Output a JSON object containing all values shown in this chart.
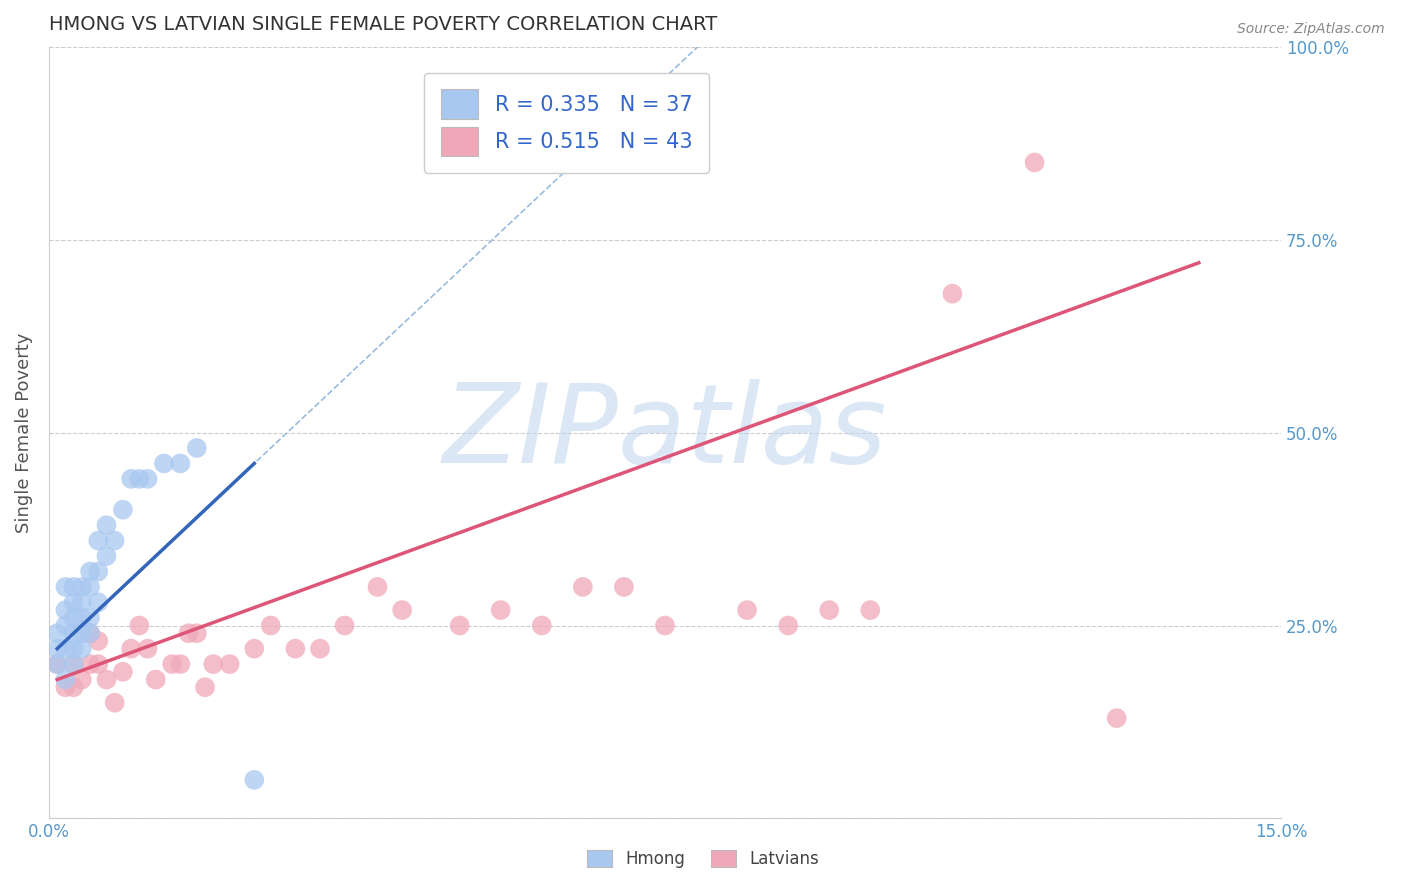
{
  "title": "HMONG VS LATVIAN SINGLE FEMALE POVERTY CORRELATION CHART",
  "source": "Source: ZipAtlas.com",
  "ylabel": "Single Female Poverty",
  "xlim": [
    0.0,
    0.15
  ],
  "ylim": [
    0.0,
    1.0
  ],
  "yticks": [
    0.0,
    0.25,
    0.5,
    0.75,
    1.0
  ],
  "yticklabels_right": [
    "",
    "25.0%",
    "50.0%",
    "75.0%",
    "100.0%"
  ],
  "hmong_R": 0.335,
  "hmong_N": 37,
  "latvian_R": 0.515,
  "latvian_N": 43,
  "hmong_color": "#a8c8f0",
  "latvian_color": "#f0a8b8",
  "hmong_line_color": "#3366bb",
  "latvian_line_color": "#dd5577",
  "watermark_zip": "ZIP",
  "watermark_atlas": "atlas",
  "watermark_color_zip": "#b8cce8",
  "watermark_color_atlas": "#8ab0d8",
  "background_color": "#ffffff",
  "grid_color": "#cccccc",
  "title_color": "#333333",
  "axis_label_color": "#555555",
  "tick_color": "#5599cc",
  "hmong_x": [
    0.001,
    0.001,
    0.001,
    0.002,
    0.002,
    0.002,
    0.002,
    0.002,
    0.003,
    0.003,
    0.003,
    0.003,
    0.003,
    0.003,
    0.004,
    0.004,
    0.004,
    0.004,
    0.004,
    0.005,
    0.005,
    0.005,
    0.005,
    0.006,
    0.006,
    0.006,
    0.007,
    0.007,
    0.008,
    0.009,
    0.01,
    0.011,
    0.012,
    0.014,
    0.016,
    0.018,
    0.025
  ],
  "hmong_y": [
    0.2,
    0.22,
    0.24,
    0.18,
    0.22,
    0.25,
    0.27,
    0.3,
    0.2,
    0.22,
    0.24,
    0.26,
    0.28,
    0.3,
    0.22,
    0.24,
    0.26,
    0.28,
    0.3,
    0.24,
    0.26,
    0.3,
    0.32,
    0.28,
    0.32,
    0.36,
    0.34,
    0.38,
    0.36,
    0.4,
    0.44,
    0.44,
    0.44,
    0.46,
    0.46,
    0.48,
    0.05
  ],
  "latvian_x": [
    0.001,
    0.002,
    0.003,
    0.003,
    0.004,
    0.005,
    0.005,
    0.006,
    0.006,
    0.007,
    0.008,
    0.009,
    0.01,
    0.011,
    0.012,
    0.013,
    0.015,
    0.016,
    0.017,
    0.018,
    0.019,
    0.02,
    0.022,
    0.025,
    0.027,
    0.03,
    0.033,
    0.036,
    0.04,
    0.043,
    0.05,
    0.055,
    0.06,
    0.065,
    0.07,
    0.075,
    0.085,
    0.09,
    0.095,
    0.1,
    0.11,
    0.12,
    0.13
  ],
  "latvian_y": [
    0.2,
    0.17,
    0.17,
    0.2,
    0.18,
    0.2,
    0.24,
    0.2,
    0.23,
    0.18,
    0.15,
    0.19,
    0.22,
    0.25,
    0.22,
    0.18,
    0.2,
    0.2,
    0.24,
    0.24,
    0.17,
    0.2,
    0.2,
    0.22,
    0.25,
    0.22,
    0.22,
    0.25,
    0.3,
    0.27,
    0.25,
    0.27,
    0.25,
    0.3,
    0.3,
    0.25,
    0.27,
    0.25,
    0.27,
    0.27,
    0.68,
    0.85,
    0.13
  ],
  "hmong_trend_x": [
    0.001,
    0.025
  ],
  "hmong_trend_y": [
    0.22,
    0.46
  ],
  "latvian_trend_x": [
    0.001,
    0.14
  ],
  "latvian_trend_y": [
    0.18,
    0.72
  ]
}
